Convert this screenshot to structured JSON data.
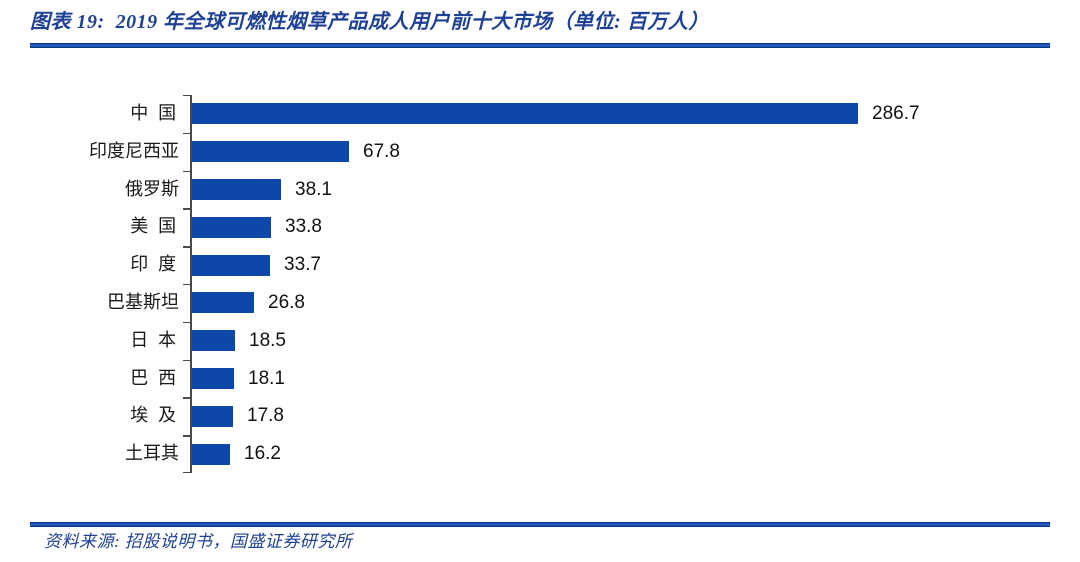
{
  "header": {
    "title": "图表 19:  2019 年全球可燃性烟草产品成人用户前十大市场（单位: 百万人）"
  },
  "footer": {
    "source": "资料来源: 招股说明书，国盛证券研究所"
  },
  "colors": {
    "bar": "#0D47A8",
    "title_text": "#1E4095",
    "rule": "#1044A4",
    "axis": "#4a4a4a",
    "value_label": "#111111",
    "category_label": "#1a1a1a"
  },
  "chart_data": {
    "type": "bar",
    "orientation": "horizontal",
    "title": "2019 年全球可燃性烟草产品成人用户前十大市场",
    "unit": "百万人",
    "categories": [
      "中国",
      "印度尼西亚",
      "俄罗斯",
      "美国",
      "印度",
      "巴基斯坦",
      "日本",
      "巴西",
      "埃及",
      "土耳其"
    ],
    "values": [
      286.7,
      67.8,
      38.1,
      33.8,
      33.7,
      26.8,
      18.5,
      18.1,
      17.8,
      16.2
    ],
    "data_labels": [
      "286.7",
      "67.8",
      "38.1",
      "33.8",
      "33.7",
      "26.8",
      "18.5",
      "18.1",
      "17.8",
      "16.2"
    ],
    "xlabel": "",
    "ylabel": "",
    "xlim": [
      0,
      290
    ],
    "grid": false,
    "legend": "none"
  }
}
